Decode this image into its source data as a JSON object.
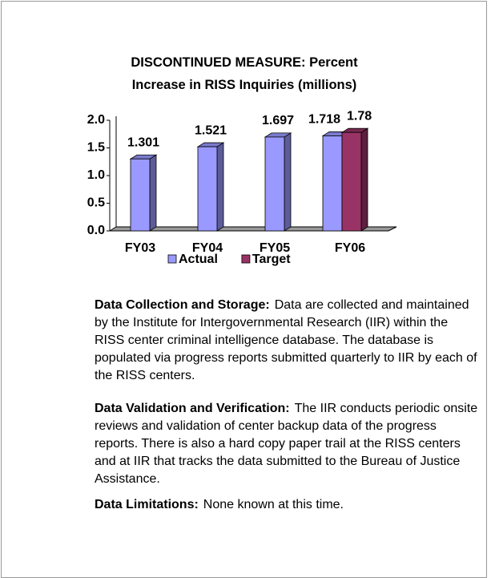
{
  "chart_data": {
    "type": "bar",
    "title": "DISCONTINUED MEASURE: Percent Increase in RISS Inquiries (millions)",
    "categories": [
      "FY03",
      "FY04",
      "FY05",
      "FY06"
    ],
    "series": [
      {
        "name": "Actual",
        "color": "#9999ff",
        "values": [
          1.301,
          1.521,
          1.697,
          1.718
        ]
      },
      {
        "name": "Target",
        "color": "#993366",
        "values": [
          null,
          null,
          null,
          1.78
        ]
      }
    ],
    "ylim": [
      0,
      2
    ],
    "yticks": [
      {
        "value": 0,
        "label": "0.0"
      },
      {
        "value": 0.5,
        "label": "0.5"
      },
      {
        "value": 1,
        "label": "1.0"
      },
      {
        "value": 1.5,
        "label": "1.5"
      },
      {
        "value": 2,
        "label": "2.0"
      }
    ],
    "legend": "bottom"
  },
  "sections": [
    {
      "heading": "Data Collection and Storage:",
      "text": "Data are collected and maintained by the Institute for Intergovernmental Research (IIR) within the RISS center criminal intelligence database. The database is populated via progress reports submitted quarterly to IIR by each of the RISS centers."
    },
    {
      "heading": "Data Validation and Verification:",
      "text": "The IIR conducts periodic onsite reviews and validation of center backup data of the progress reports. There is also a hard copy paper trail at the RISS centers and at IIR that tracks the data submitted to the Bureau of Justice Assistance."
    },
    {
      "heading": "Data Limitations:",
      "text": "None known at this time."
    }
  ]
}
